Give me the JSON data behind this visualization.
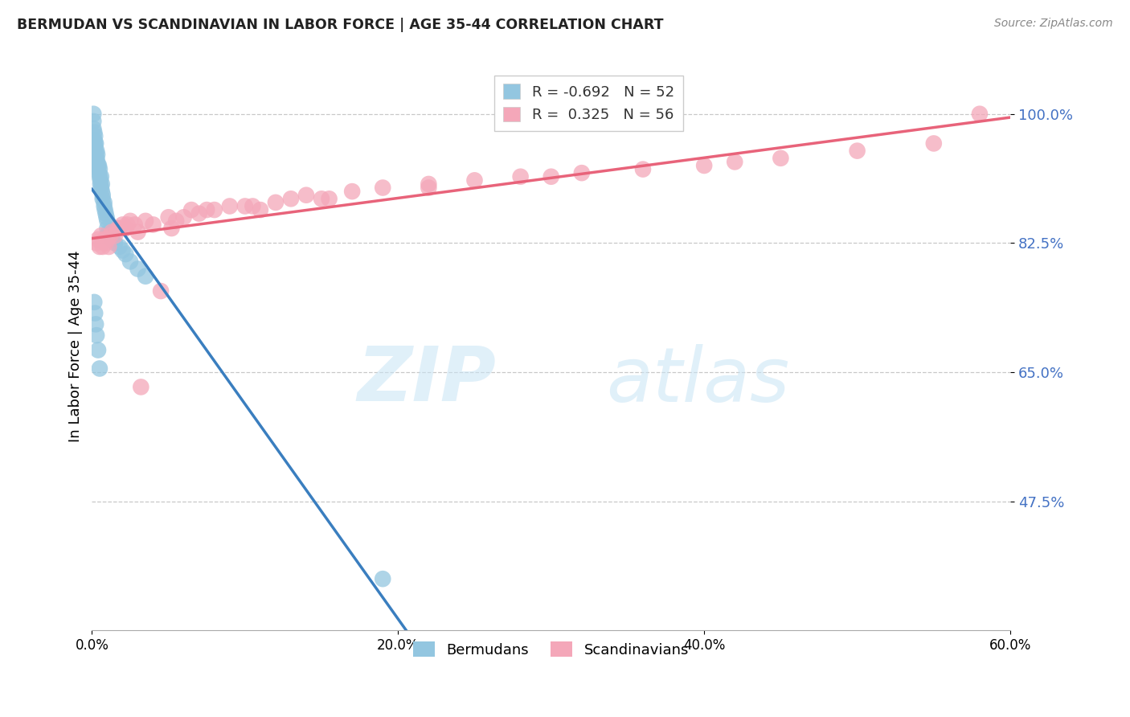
{
  "title": "BERMUDAN VS SCANDINAVIAN IN LABOR FORCE | AGE 35-44 CORRELATION CHART",
  "source_text": "Source: ZipAtlas.com",
  "ylabel": "In Labor Force | Age 35-44",
  "xlim": [
    0.0,
    60.0
  ],
  "ylim": [
    30.0,
    107.0
  ],
  "yticks": [
    47.5,
    65.0,
    82.5,
    100.0
  ],
  "ytick_labels": [
    "47.5%",
    "65.0%",
    "82.5%",
    "100.0%"
  ],
  "xticks": [
    0.0,
    20.0,
    40.0,
    60.0
  ],
  "xtick_labels": [
    "0.0%",
    "20.0%",
    "40.0%",
    "60.0%"
  ],
  "watermark_zip": "ZIP",
  "watermark_atlas": "atlas",
  "blue_color": "#93c6e0",
  "pink_color": "#f4a7b9",
  "blue_line_color": "#3a7ebf",
  "pink_line_color": "#e8637a",
  "background_color": "#ffffff",
  "blue_scatter_x": [
    0.1,
    0.1,
    0.1,
    0.15,
    0.15,
    0.2,
    0.2,
    0.2,
    0.25,
    0.25,
    0.3,
    0.3,
    0.35,
    0.35,
    0.4,
    0.4,
    0.45,
    0.45,
    0.5,
    0.5,
    0.55,
    0.55,
    0.6,
    0.6,
    0.65,
    0.65,
    0.7,
    0.7,
    0.8,
    0.8,
    0.85,
    0.9,
    0.95,
    1.0,
    1.0,
    1.1,
    1.2,
    1.3,
    1.5,
    1.8,
    2.0,
    2.2,
    2.5,
    3.0,
    3.5,
    0.15,
    0.2,
    0.25,
    0.3,
    0.4,
    0.5,
    19.0
  ],
  "blue_scatter_y": [
    100.0,
    99.0,
    98.0,
    97.5,
    96.5,
    97.0,
    96.0,
    95.5,
    96.0,
    94.5,
    95.0,
    94.0,
    94.5,
    93.5,
    93.0,
    92.5,
    93.0,
    92.0,
    92.5,
    91.5,
    91.0,
    90.5,
    91.5,
    90.0,
    90.5,
    89.5,
    89.0,
    88.5,
    88.0,
    87.5,
    87.0,
    86.5,
    86.0,
    85.5,
    84.5,
    84.0,
    83.5,
    83.0,
    82.5,
    82.0,
    81.5,
    81.0,
    80.0,
    79.0,
    78.0,
    74.5,
    73.0,
    71.5,
    70.0,
    68.0,
    65.5,
    37.0
  ],
  "pink_scatter_x": [
    0.3,
    0.4,
    0.5,
    0.6,
    0.7,
    0.8,
    0.9,
    1.0,
    1.1,
    1.2,
    1.3,
    1.5,
    1.7,
    2.0,
    2.2,
    2.5,
    2.8,
    3.0,
    3.5,
    4.0,
    4.5,
    5.0,
    5.5,
    6.0,
    6.5,
    7.0,
    8.0,
    9.0,
    10.0,
    11.0,
    12.0,
    13.0,
    14.0,
    15.0,
    17.0,
    19.0,
    22.0,
    25.0,
    28.0,
    32.0,
    36.0,
    40.0,
    45.0,
    50.0,
    55.0,
    1.8,
    2.3,
    3.2,
    5.2,
    7.5,
    10.5,
    15.5,
    22.0,
    30.0,
    42.0,
    58.0
  ],
  "pink_scatter_y": [
    82.5,
    83.0,
    82.0,
    83.5,
    82.0,
    83.0,
    82.5,
    83.0,
    82.0,
    83.5,
    84.0,
    83.5,
    84.5,
    85.0,
    84.5,
    85.5,
    85.0,
    84.0,
    85.5,
    85.0,
    76.0,
    86.0,
    85.5,
    86.0,
    87.0,
    86.5,
    87.0,
    87.5,
    87.5,
    87.0,
    88.0,
    88.5,
    89.0,
    88.5,
    89.5,
    90.0,
    90.5,
    91.0,
    91.5,
    92.0,
    92.5,
    93.0,
    94.0,
    95.0,
    96.0,
    84.5,
    85.0,
    63.0,
    84.5,
    87.0,
    87.5,
    88.5,
    90.0,
    91.5,
    93.5,
    100.0
  ]
}
